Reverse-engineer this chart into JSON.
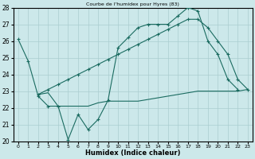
{
  "title": "Courbe de l'humidex pour Hyres (83)",
  "xlabel": "Humidex (Indice chaleur)",
  "xlim": [
    -0.5,
    23.5
  ],
  "ylim": [
    20,
    28
  ],
  "yticks": [
    20,
    21,
    22,
    23,
    24,
    25,
    26,
    27,
    28
  ],
  "xticks": [
    0,
    1,
    2,
    3,
    4,
    5,
    6,
    7,
    8,
    9,
    10,
    11,
    12,
    13,
    14,
    15,
    16,
    17,
    18,
    19,
    20,
    21,
    22,
    23
  ],
  "bg_color": "#cce8ea",
  "line_color": "#1a6b60",
  "grid_color": "#aacdd0",
  "line1_x": [
    0,
    1,
    2,
    3,
    4,
    5,
    6,
    7,
    8,
    9,
    10,
    11,
    12,
    13,
    14,
    15,
    16,
    17,
    18,
    19,
    20,
    21,
    22
  ],
  "line1_y": [
    26.1,
    24.8,
    22.7,
    22.1,
    22.1,
    20.1,
    21.6,
    20.7,
    21.3,
    22.45,
    25.6,
    26.2,
    26.8,
    27.0,
    27.0,
    27.0,
    27.5,
    28.0,
    27.8,
    26.0,
    25.2,
    23.7,
    23.1
  ],
  "line2_x": [
    2,
    3,
    4,
    5,
    6,
    7,
    8,
    9,
    10,
    11,
    12,
    13,
    14,
    15,
    16,
    17,
    18,
    19,
    20,
    21,
    22,
    23
  ],
  "line2_y": [
    22.8,
    23.1,
    23.4,
    23.7,
    24.0,
    24.3,
    24.6,
    24.9,
    25.2,
    25.5,
    25.8,
    26.1,
    26.4,
    26.7,
    27.0,
    27.3,
    27.3,
    26.8,
    26.0,
    25.2,
    23.7,
    23.1
  ],
  "line3_x": [
    2,
    3,
    4,
    5,
    6,
    7,
    8,
    9,
    10,
    11,
    12,
    13,
    14,
    15,
    16,
    17,
    18,
    19,
    20,
    21,
    22,
    23
  ],
  "line3_y": [
    22.8,
    22.9,
    22.1,
    22.1,
    22.1,
    22.1,
    22.3,
    22.4,
    22.4,
    22.4,
    22.4,
    22.5,
    22.6,
    22.7,
    22.8,
    22.9,
    23.0,
    23.0,
    23.0,
    23.0,
    23.0,
    23.1
  ]
}
